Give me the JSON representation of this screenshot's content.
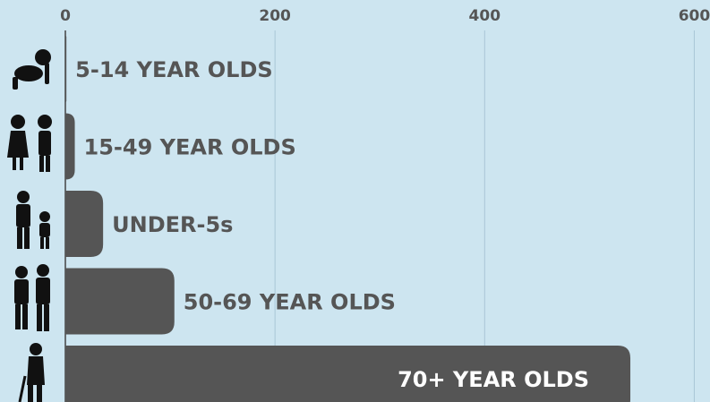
{
  "chart_data": {
    "type": "bar",
    "orientation": "horizontal",
    "categories": [
      "5-14 YEAR OLDS",
      "15-49 YEAR OLDS",
      "UNDER-5s",
      "50-69 YEAR OLDS",
      "70+ YEAR OLDS"
    ],
    "values": [
      1,
      9,
      36,
      104,
      539
    ],
    "color": "#555555",
    "xlim": [
      0,
      615
    ],
    "xticks": [
      0,
      200,
      400,
      600
    ],
    "grid": true
  }
}
